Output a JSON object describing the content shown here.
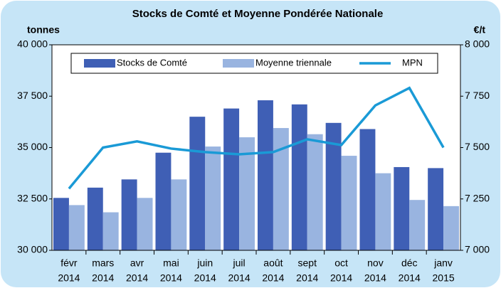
{
  "chart_data": {
    "type": "bar",
    "title": "Stocks de Comté et Moyenne Pondérée Nationale",
    "y_label": "tonnes",
    "y2_label": "€/t",
    "categories": [
      [
        "févr",
        "2014"
      ],
      [
        "mars",
        "2014"
      ],
      [
        "avr",
        "2014"
      ],
      [
        "mai",
        "2014"
      ],
      [
        "juin",
        "2014"
      ],
      [
        "juil",
        "2014"
      ],
      [
        "août",
        "2014"
      ],
      [
        "sept",
        "2014"
      ],
      [
        "oct",
        "2014"
      ],
      [
        "nov",
        "2014"
      ],
      [
        "déc",
        "2014"
      ],
      [
        "janv",
        "2015"
      ]
    ],
    "series": [
      {
        "name": "Stocks de Comté",
        "type": "bar",
        "color": "#3f5fb5",
        "values": [
          32550,
          33050,
          33450,
          34750,
          36500,
          36900,
          37300,
          37100,
          36200,
          35900,
          34050,
          34000
        ]
      },
      {
        "name": "Moyenne triennale",
        "type": "bar",
        "color": "#99b4e0",
        "values": [
          32200,
          31850,
          32550,
          33450,
          35050,
          35500,
          35950,
          35650,
          34600,
          33750,
          32450,
          32150
        ]
      },
      {
        "name": "MPN",
        "type": "line",
        "axis": "y2",
        "color": "#1a9ad6",
        "values": [
          7300,
          7500,
          7530,
          7495,
          7478,
          7467,
          7478,
          7540,
          7512,
          7705,
          7790,
          7500
        ]
      }
    ],
    "ylim": [
      30000,
      40000
    ],
    "yticks": [
      {
        "value": 30000,
        "label": "30 000"
      },
      {
        "value": 32500,
        "label": "32 500"
      },
      {
        "value": 35000,
        "label": "35 000"
      },
      {
        "value": 37500,
        "label": "37 500"
      },
      {
        "value": 40000,
        "label": "40 000"
      }
    ],
    "y2lim": [
      7000,
      8000
    ],
    "y2ticks": [
      {
        "value": 7000,
        "label": "7 000"
      },
      {
        "value": 7250,
        "label": "7 250"
      },
      {
        "value": 7500,
        "label": "7 500"
      },
      {
        "value": 7750,
        "label": "7 750"
      },
      {
        "value": 8000,
        "label": "8 000"
      }
    ],
    "grid": false
  }
}
